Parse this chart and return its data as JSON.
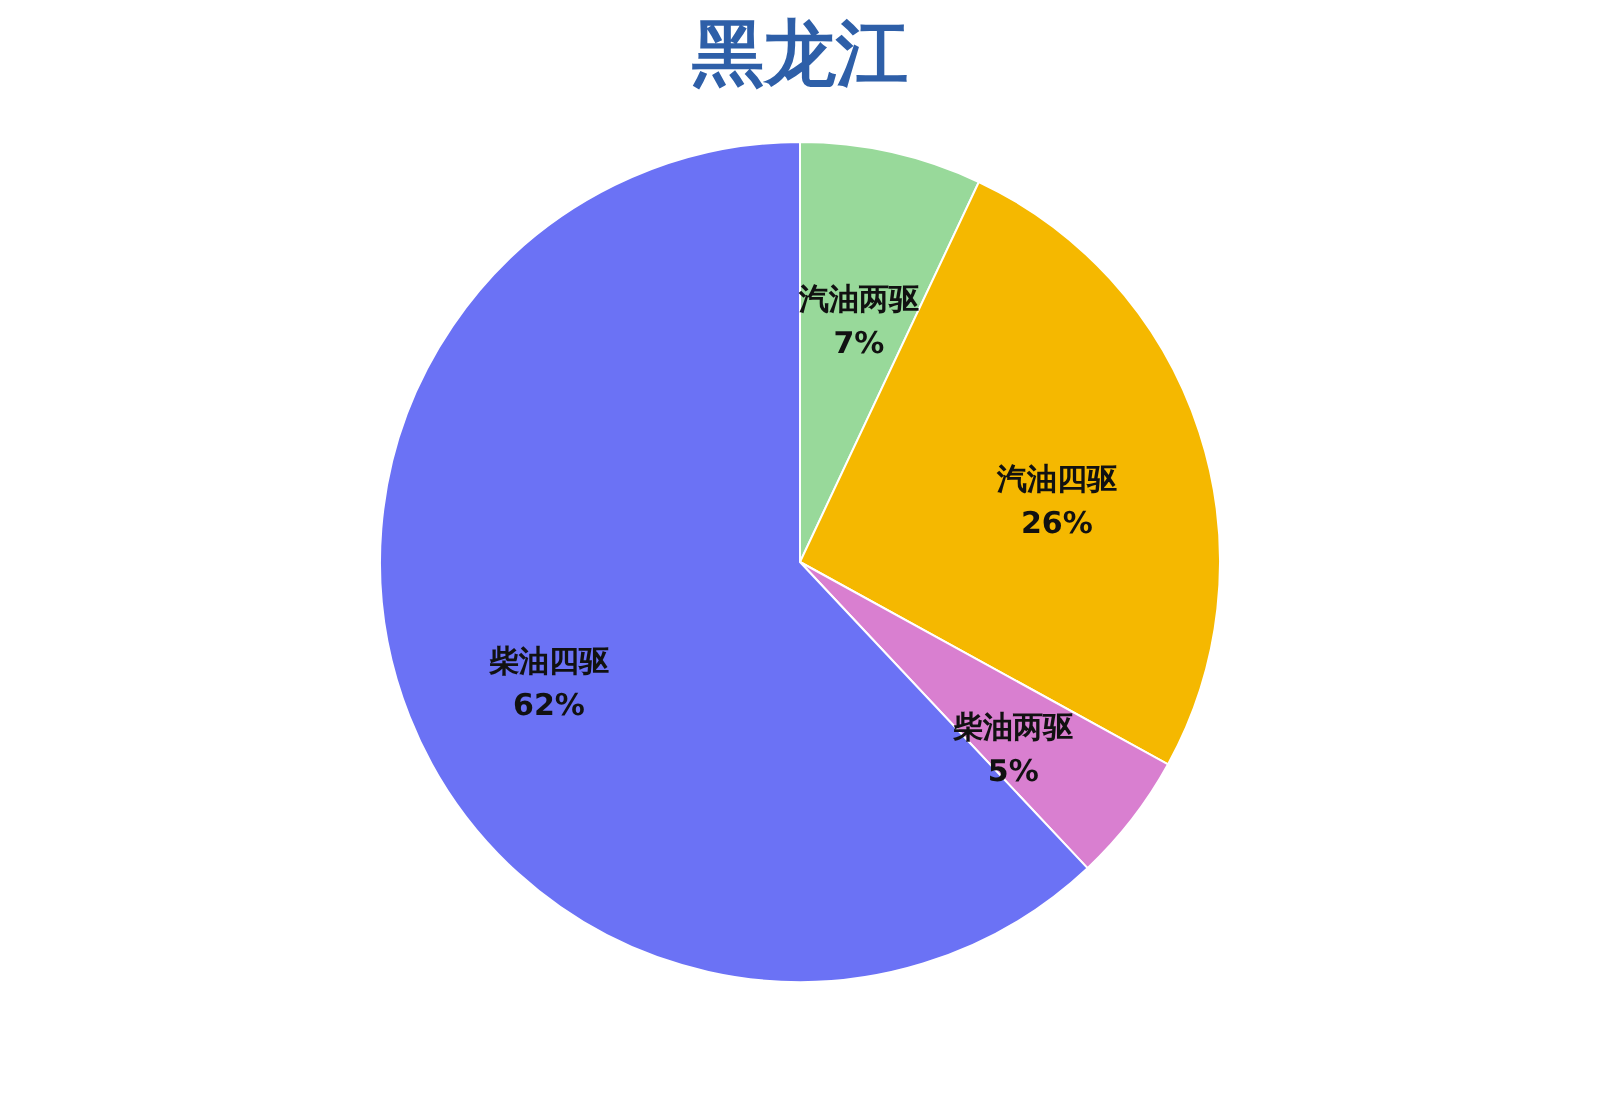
{
  "chart_data": {
    "type": "pie",
    "title": "黑龙江",
    "categories": [
      "汽油两驱",
      "汽油四驱",
      "柴油两驱",
      "柴油四驱"
    ],
    "values": [
      7,
      26,
      5,
      62
    ],
    "value_labels": [
      "7%",
      "26%",
      "5%",
      "62%"
    ],
    "colors": [
      "#98d99a",
      "#f5b800",
      "#d97fd0",
      "#6b72f5"
    ],
    "legend": false
  }
}
